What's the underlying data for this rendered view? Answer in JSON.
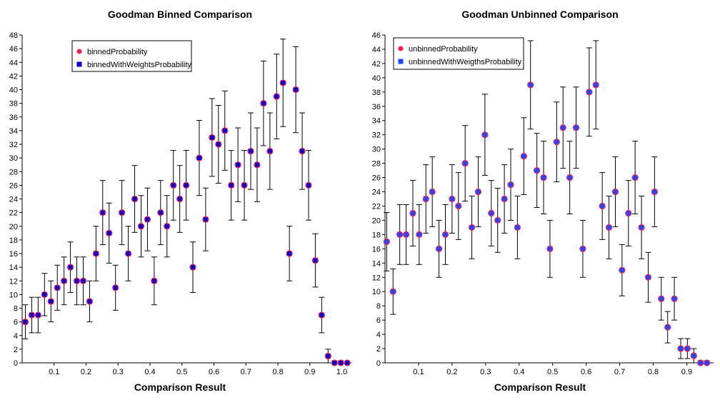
{
  "chart_data": [
    {
      "type": "scatter",
      "title": "Goodman Binned Comparison",
      "xlabel": "Comparison Result",
      "ylabel": "",
      "xlim": [
        0.0,
        1.03
      ],
      "ylim": [
        0,
        48
      ],
      "xticks": [
        "0.1",
        "0.2",
        "0.3",
        "0.4",
        "0.5",
        "0.6",
        "0.7",
        "0.8",
        "0.9",
        "1.0"
      ],
      "yticks": [
        "0",
        "2",
        "4",
        "6",
        "8",
        "10",
        "12",
        "14",
        "16",
        "18",
        "20",
        "22",
        "24",
        "26",
        "28",
        "30",
        "32",
        "34",
        "36",
        "38",
        "40",
        "42",
        "44",
        "46",
        "48"
      ],
      "grid": false,
      "legend_position": "top-left",
      "series": [
        {
          "name": "binnedProbability",
          "color": "#ff1a4a",
          "marker": "circle"
        },
        {
          "name": "binnedWithWeightsProbability",
          "color": "#0000cc",
          "marker": "square"
        }
      ],
      "error_bars": true,
      "x": [
        0.01,
        0.03,
        0.05,
        0.07,
        0.09,
        0.11,
        0.131,
        0.151,
        0.171,
        0.191,
        0.211,
        0.231,
        0.252,
        0.272,
        0.292,
        0.312,
        0.332,
        0.352,
        0.372,
        0.392,
        0.413,
        0.433,
        0.453,
        0.473,
        0.493,
        0.513,
        0.534,
        0.554,
        0.574,
        0.594,
        0.614,
        0.634,
        0.654,
        0.675,
        0.695,
        0.715,
        0.735,
        0.755,
        0.775,
        0.796,
        0.816,
        0.836,
        0.856,
        0.876,
        0.896,
        0.917,
        0.937,
        0.957,
        0.977,
        0.997,
        1.017
      ],
      "values": [
        6,
        7,
        7,
        10,
        9,
        11,
        12,
        14,
        12,
        12,
        9,
        16,
        22,
        19,
        11,
        22,
        16,
        24,
        20,
        21,
        12,
        22,
        20,
        26,
        24,
        26,
        14,
        30,
        21,
        33,
        32,
        34,
        26,
        29,
        26,
        31,
        29,
        38,
        31,
        39,
        41,
        16,
        40,
        31,
        26,
        15,
        7,
        1,
        0,
        0,
        0
      ],
      "errors": [
        2.5,
        2.6,
        2.6,
        3.1,
        3.0,
        3.3,
        3.5,
        3.7,
        3.5,
        3.5,
        3.0,
        4.0,
        4.7,
        4.4,
        3.3,
        4.7,
        4.0,
        4.9,
        4.5,
        4.6,
        3.5,
        4.7,
        4.5,
        5.1,
        4.9,
        5.1,
        3.7,
        5.5,
        4.6,
        5.7,
        5.7,
        5.8,
        5.1,
        5.4,
        5.1,
        5.6,
        5.4,
        6.2,
        5.6,
        6.2,
        6.4,
        4.0,
        6.3,
        5.6,
        5.1,
        3.9,
        2.6,
        1.0,
        0.3,
        0.3,
        0
      ]
    },
    {
      "type": "scatter",
      "title": "Goodman Unbinned Comparison",
      "xlabel": "Comparison Result",
      "ylabel": "",
      "xlim": [
        0.0,
        0.98
      ],
      "ylim": [
        0,
        46
      ],
      "xticks": [
        "0.1",
        "0.2",
        "0.3",
        "0.4",
        "0.5",
        "0.6",
        "0.7",
        "0.8",
        "0.9"
      ],
      "yticks": [
        "0",
        "2",
        "4",
        "6",
        "8",
        "10",
        "12",
        "14",
        "16",
        "18",
        "20",
        "22",
        "24",
        "26",
        "28",
        "30",
        "32",
        "34",
        "36",
        "38",
        "40",
        "42",
        "44",
        "46"
      ],
      "grid": false,
      "legend_position": "top-left",
      "series": [
        {
          "name": "unbinnedProbability",
          "color": "#ff1a4a",
          "marker": "circle"
        },
        {
          "name": "unbinnedWithWeigthsProbability",
          "color": "#1a4aff",
          "marker": "square"
        }
      ],
      "error_bars": true,
      "x": [
        0.005,
        0.024,
        0.044,
        0.063,
        0.083,
        0.102,
        0.122,
        0.141,
        0.161,
        0.18,
        0.2,
        0.219,
        0.239,
        0.259,
        0.278,
        0.298,
        0.317,
        0.336,
        0.356,
        0.375,
        0.395,
        0.414,
        0.434,
        0.453,
        0.473,
        0.492,
        0.512,
        0.531,
        0.551,
        0.57,
        0.59,
        0.609,
        0.629,
        0.648,
        0.668,
        0.687,
        0.707,
        0.726,
        0.746,
        0.765,
        0.785,
        0.804,
        0.824,
        0.843,
        0.863,
        0.882,
        0.902,
        0.921,
        0.941,
        0.96
      ],
      "values": [
        17,
        10,
        18,
        18,
        21,
        18,
        23,
        24,
        16,
        18,
        23,
        22,
        28,
        19,
        24,
        32,
        21,
        20,
        23,
        25,
        19,
        29,
        39,
        27,
        26,
        16,
        31,
        33,
        26,
        33,
        16,
        38,
        39,
        22,
        19,
        24,
        13,
        21,
        26,
        19,
        12,
        24,
        9,
        5,
        9,
        2,
        2,
        1,
        0,
        0
      ],
      "errors": [
        4.1,
        3.2,
        4.2,
        4.2,
        4.6,
        4.2,
        4.8,
        4.9,
        4.0,
        4.2,
        4.8,
        4.7,
        5.3,
        4.4,
        4.9,
        5.7,
        4.6,
        4.5,
        4.8,
        5.0,
        4.4,
        5.4,
        6.2,
        5.2,
        5.1,
        4.0,
        5.6,
        5.7,
        5.1,
        5.7,
        4.0,
        6.2,
        6.2,
        4.7,
        4.4,
        4.9,
        3.6,
        4.6,
        5.1,
        4.4,
        3.5,
        4.9,
        3.0,
        2.2,
        3.0,
        1.4,
        1.4,
        1.0,
        0.3,
        0.3
      ]
    }
  ]
}
